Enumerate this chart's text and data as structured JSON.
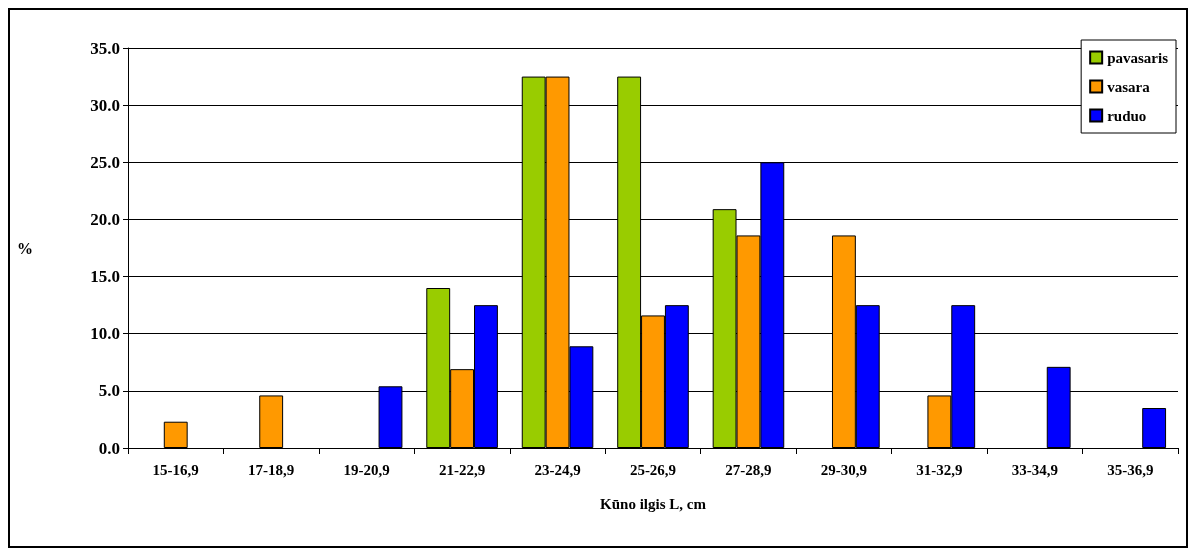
{
  "chart_data": {
    "type": "bar",
    "xlabel": "Kūno ilgis L, cm",
    "ylabel": "%",
    "categories": [
      "15-16,9",
      "17-18,9",
      "19-20,9",
      "21-22,9",
      "23-24,9",
      "25-26,9",
      "27-28,9",
      "29-30,9",
      "31-32,9",
      "33-34,9",
      "35-36,9"
    ],
    "series": [
      {
        "name": "pavasaris",
        "color": "#99cc00",
        "values": [
          0,
          0,
          0,
          14.0,
          32.5,
          32.5,
          20.9,
          0,
          0,
          0,
          0
        ]
      },
      {
        "name": "vasara",
        "color": "#ff9900",
        "values": [
          2.3,
          4.6,
          0,
          6.9,
          32.5,
          11.6,
          18.6,
          18.6,
          4.6,
          0,
          0
        ]
      },
      {
        "name": "ruduo",
        "color": "#0000ff",
        "values": [
          0,
          0,
          5.4,
          12.5,
          8.9,
          12.5,
          25.0,
          12.5,
          12.5,
          7.1,
          3.5
        ]
      }
    ],
    "ylim": [
      0,
      35
    ],
    "yticks": [
      {
        "value": 0,
        "label": "0.0"
      },
      {
        "value": 5,
        "label": "5.0"
      },
      {
        "value": 10,
        "label": "10.0"
      },
      {
        "value": 15,
        "label": "15.0"
      },
      {
        "value": 20,
        "label": "20.0"
      },
      {
        "value": 25,
        "label": "25.0"
      },
      {
        "value": 30,
        "label": "30.0"
      },
      {
        "value": 35,
        "label": "35.0"
      }
    ],
    "grid": "y",
    "legend": "top right"
  }
}
